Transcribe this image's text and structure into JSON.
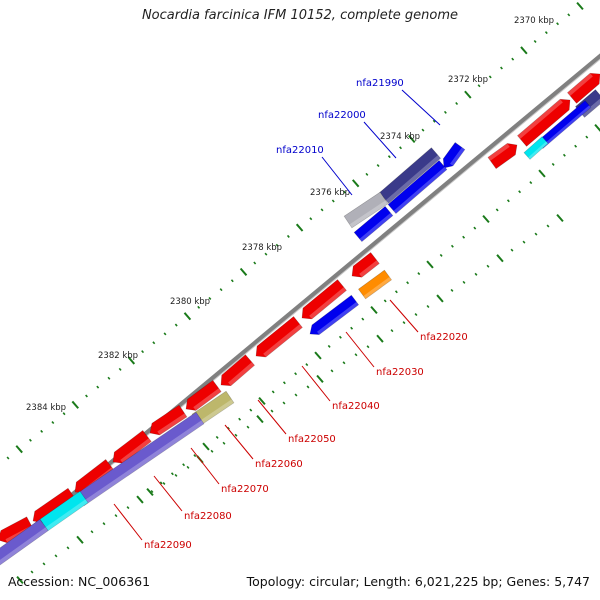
{
  "title": "Nocardia farcinica IFM 10152, complete genome",
  "footer": {
    "accession": "Accession: NC_006361",
    "summary": "Topology: circular; Length: 6,021,225 bp; Genes: 5,747"
  },
  "scale_labels": [
    "2370 kbp",
    "2372 kbp",
    "2374 kbp",
    "2376 kbp",
    "2378 kbp",
    "2380 kbp",
    "2382 kbp",
    "2384 kbp"
  ],
  "gene_labels": {
    "forward": [
      "nfa21990",
      "nfa22000",
      "nfa22010"
    ],
    "reverse": [
      "nfa22020",
      "nfa22030",
      "nfa22040",
      "nfa22050",
      "nfa22060",
      "nfa22070",
      "nfa22080",
      "nfa22090"
    ]
  },
  "colors": {
    "backbone": "#808080",
    "tick": "#1a7a1a",
    "red_feature": "#ee0000",
    "blue_feature": "#0000ee",
    "navy_feature": "#3a3a8a",
    "purple_feature": "#6a5acd",
    "cyan_feature": "#00e5ee",
    "orange_feature": "#ff8c00",
    "khaki_feature": "#bdb76b",
    "gray_feature": "#b0b0b8",
    "forward_label": "#0000cc",
    "reverse_label": "#cc0000"
  }
}
